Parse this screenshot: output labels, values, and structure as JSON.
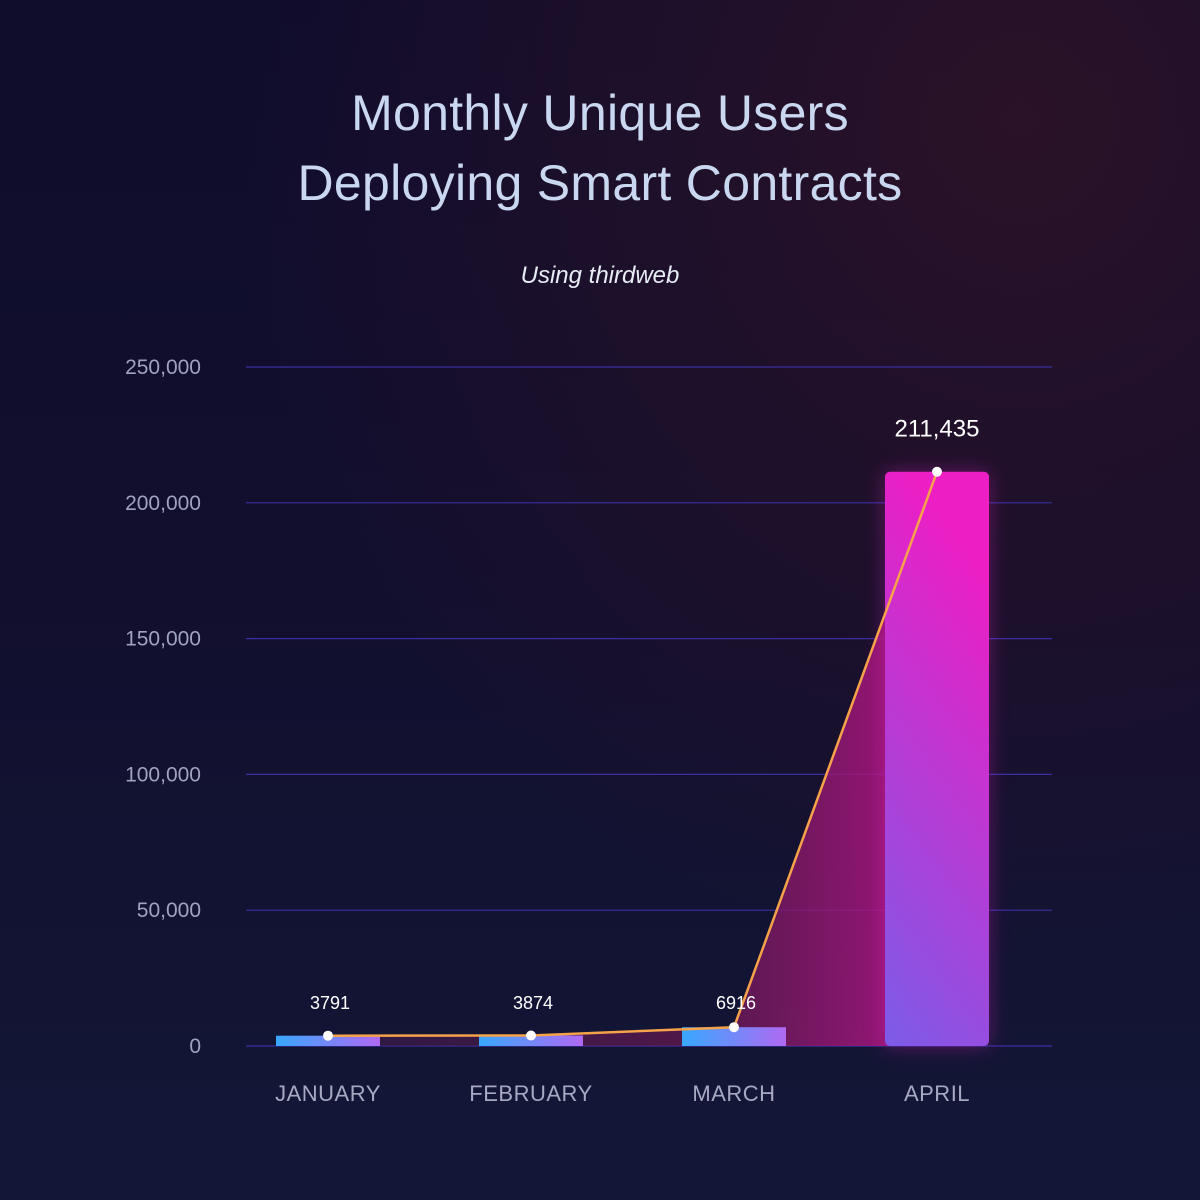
{
  "title_lines": [
    "Monthly Unique Users",
    "Deploying Smart Contracts"
  ],
  "subtitle": "Using thirdweb",
  "colors": {
    "gridline": "#3a2fa0",
    "line": "#f5a24a",
    "bar_bottom": "#7b5ce8",
    "bar_top": "#ec1ec4",
    "bar_small_left": "#38a8ff",
    "bar_small_right": "#b069f2"
  },
  "chart_data": {
    "type": "bar",
    "title": "Monthly Unique Users Deploying Smart Contracts",
    "subtitle": "Using thirdweb",
    "categories": [
      "JANUARY",
      "FEBRUARY",
      "MARCH",
      "APRIL"
    ],
    "values": [
      3791,
      3874,
      6916,
      211435
    ],
    "data_labels": [
      "3791",
      "3874",
      "6916",
      "211,435"
    ],
    "overlay": "line connecting bar tops",
    "ylim": [
      0,
      250000
    ],
    "yticks": [
      0,
      50000,
      100000,
      150000,
      200000,
      250000
    ],
    "ytick_labels": [
      "0",
      "50,000",
      "100,000",
      "150,000",
      "200,000",
      "250,000"
    ],
    "grid": true,
    "xlabel": "",
    "ylabel": ""
  }
}
